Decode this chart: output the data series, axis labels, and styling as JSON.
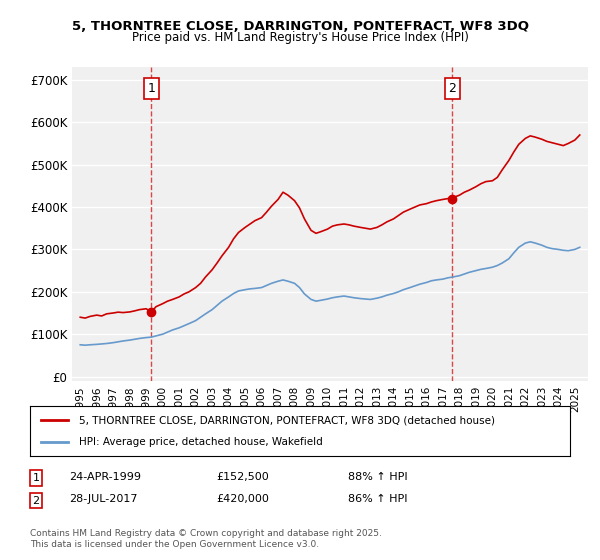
{
  "title1": "5, THORNTREE CLOSE, DARRINGTON, PONTEFRACT, WF8 3DQ",
  "title2": "Price paid vs. HM Land Registry's House Price Index (HPI)",
  "ylabel": "",
  "background_color": "#ffffff",
  "plot_bg_color": "#f0f0f0",
  "grid_color": "#ffffff",
  "legend_label_red": "5, THORNTREE CLOSE, DARRINGTON, PONTEFRACT, WF8 3DQ (detached house)",
  "legend_label_blue": "HPI: Average price, detached house, Wakefield",
  "annotation1_label": "1",
  "annotation1_date": "24-APR-1999",
  "annotation1_price": "£152,500",
  "annotation1_hpi": "88% ↑ HPI",
  "annotation2_label": "2",
  "annotation2_date": "28-JUL-2017",
  "annotation2_price": "£420,000",
  "annotation2_hpi": "86% ↑ HPI",
  "copyright_text": "Contains HM Land Registry data © Crown copyright and database right 2025.\nThis data is licensed under the Open Government Licence v3.0.",
  "red_color": "#cc0000",
  "blue_color": "#6699cc",
  "dashed_color": "#cc0000",
  "yticks": [
    0,
    100000,
    200000,
    300000,
    400000,
    500000,
    600000,
    700000
  ],
  "ytick_labels": [
    "£0",
    "£100K",
    "£200K",
    "£300K",
    "£400K",
    "£500K",
    "£600K",
    "£700K"
  ],
  "ylim": [
    -10000,
    730000
  ],
  "xlim_start": 1994.5,
  "xlim_end": 2025.8,
  "xtick_years": [
    1995,
    1996,
    1997,
    1998,
    1999,
    2000,
    2001,
    2002,
    2003,
    2004,
    2005,
    2006,
    2007,
    2008,
    2009,
    2010,
    2011,
    2012,
    2013,
    2014,
    2015,
    2016,
    2017,
    2018,
    2019,
    2020,
    2021,
    2022,
    2023,
    2024,
    2025
  ],
  "sale1_x": 1999.31,
  "sale1_y": 152500,
  "sale2_x": 2017.57,
  "sale2_y": 420000,
  "red_line_x": [
    1995.0,
    1995.3,
    1995.6,
    1996.0,
    1996.3,
    1996.6,
    1997.0,
    1997.3,
    1997.6,
    1998.0,
    1998.3,
    1998.6,
    1999.0,
    1999.31,
    1999.6,
    2000.0,
    2000.3,
    2000.6,
    2001.0,
    2001.3,
    2001.6,
    2002.0,
    2002.3,
    2002.6,
    2003.0,
    2003.3,
    2003.6,
    2004.0,
    2004.3,
    2004.6,
    2005.0,
    2005.3,
    2005.6,
    2006.0,
    2006.3,
    2006.6,
    2007.0,
    2007.3,
    2007.6,
    2008.0,
    2008.3,
    2008.6,
    2009.0,
    2009.3,
    2009.6,
    2010.0,
    2010.3,
    2010.6,
    2011.0,
    2011.3,
    2011.6,
    2012.0,
    2012.3,
    2012.6,
    2013.0,
    2013.3,
    2013.6,
    2014.0,
    2014.3,
    2014.6,
    2015.0,
    2015.3,
    2015.6,
    2016.0,
    2016.3,
    2016.6,
    2017.0,
    2017.3,
    2017.57,
    2017.6,
    2018.0,
    2018.3,
    2018.6,
    2019.0,
    2019.3,
    2019.6,
    2020.0,
    2020.3,
    2020.6,
    2021.0,
    2021.3,
    2021.6,
    2022.0,
    2022.3,
    2022.6,
    2023.0,
    2023.3,
    2023.6,
    2024.0,
    2024.3,
    2024.6,
    2025.0,
    2025.3
  ],
  "red_line_y": [
    140000,
    138000,
    142000,
    145000,
    143000,
    148000,
    150000,
    152000,
    151000,
    152500,
    155000,
    158000,
    160000,
    152500,
    165000,
    172000,
    178000,
    182000,
    188000,
    195000,
    200000,
    210000,
    220000,
    235000,
    252000,
    268000,
    285000,
    305000,
    325000,
    340000,
    352000,
    360000,
    368000,
    375000,
    388000,
    402000,
    418000,
    435000,
    428000,
    415000,
    398000,
    372000,
    345000,
    338000,
    342000,
    348000,
    355000,
    358000,
    360000,
    358000,
    355000,
    352000,
    350000,
    348000,
    352000,
    358000,
    365000,
    372000,
    380000,
    388000,
    395000,
    400000,
    405000,
    408000,
    412000,
    415000,
    418000,
    420000,
    420000,
    422000,
    428000,
    435000,
    440000,
    448000,
    455000,
    460000,
    462000,
    470000,
    488000,
    510000,
    530000,
    548000,
    562000,
    568000,
    565000,
    560000,
    555000,
    552000,
    548000,
    545000,
    550000,
    558000,
    570000
  ],
  "blue_line_x": [
    1995.0,
    1995.3,
    1995.6,
    1996.0,
    1996.3,
    1996.6,
    1997.0,
    1997.3,
    1997.6,
    1998.0,
    1998.3,
    1998.6,
    1999.0,
    1999.3,
    1999.6,
    2000.0,
    2000.3,
    2000.6,
    2001.0,
    2001.3,
    2001.6,
    2002.0,
    2002.3,
    2002.6,
    2003.0,
    2003.3,
    2003.6,
    2004.0,
    2004.3,
    2004.6,
    2005.0,
    2005.3,
    2005.6,
    2006.0,
    2006.3,
    2006.6,
    2007.0,
    2007.3,
    2007.6,
    2008.0,
    2008.3,
    2008.6,
    2009.0,
    2009.3,
    2009.6,
    2010.0,
    2010.3,
    2010.6,
    2011.0,
    2011.3,
    2011.6,
    2012.0,
    2012.3,
    2012.6,
    2013.0,
    2013.3,
    2013.6,
    2014.0,
    2014.3,
    2014.6,
    2015.0,
    2015.3,
    2015.6,
    2016.0,
    2016.3,
    2016.6,
    2017.0,
    2017.3,
    2017.6,
    2018.0,
    2018.3,
    2018.6,
    2019.0,
    2019.3,
    2019.6,
    2020.0,
    2020.3,
    2020.6,
    2021.0,
    2021.3,
    2021.6,
    2022.0,
    2022.3,
    2022.6,
    2023.0,
    2023.3,
    2023.6,
    2024.0,
    2024.3,
    2024.6,
    2025.0,
    2025.3
  ],
  "blue_line_y": [
    75000,
    74000,
    75000,
    76000,
    77000,
    78000,
    80000,
    82000,
    84000,
    86000,
    88000,
    90000,
    92000,
    93000,
    96000,
    100000,
    105000,
    110000,
    115000,
    120000,
    125000,
    132000,
    140000,
    148000,
    158000,
    168000,
    178000,
    188000,
    196000,
    202000,
    205000,
    207000,
    208000,
    210000,
    215000,
    220000,
    225000,
    228000,
    225000,
    220000,
    210000,
    195000,
    182000,
    178000,
    180000,
    183000,
    186000,
    188000,
    190000,
    188000,
    186000,
    184000,
    183000,
    182000,
    185000,
    188000,
    192000,
    196000,
    200000,
    205000,
    210000,
    214000,
    218000,
    222000,
    226000,
    228000,
    230000,
    233000,
    235000,
    238000,
    242000,
    246000,
    250000,
    253000,
    255000,
    258000,
    262000,
    268000,
    278000,
    292000,
    305000,
    315000,
    318000,
    315000,
    310000,
    305000,
    302000,
    300000,
    298000,
    297000,
    300000,
    305000
  ]
}
